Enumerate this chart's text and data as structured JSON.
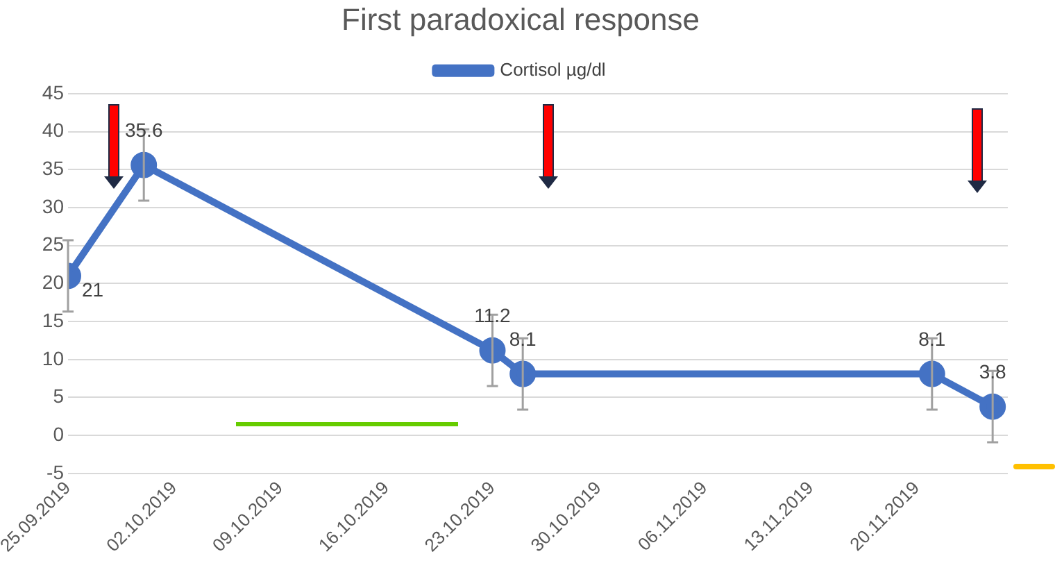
{
  "chart_data": {
    "type": "line",
    "title": "First paradoxical response",
    "x": [
      "2019-09-25",
      "2019-09-30",
      "2019-10-23",
      "2019-10-25",
      "2019-11-21",
      "2019-11-25"
    ],
    "series": [
      {
        "name": "Cortisol µg/dl",
        "color": "#4472c4",
        "values": [
          21,
          35.6,
          11.2,
          8.1,
          8.1,
          3.8
        ],
        "errors": [
          4.7,
          4.7,
          4.7,
          4.7,
          4.7,
          4.7
        ]
      }
    ],
    "xlim": [
      "2019-09-25",
      "2019-11-26"
    ],
    "xticks": [
      {
        "value": "2019-09-25",
        "label": "25.09.2019"
      },
      {
        "value": "2019-10-02",
        "label": "02.10.2019"
      },
      {
        "value": "2019-10-09",
        "label": "09.10.2019"
      },
      {
        "value": "2019-10-16",
        "label": "16.10.2019"
      },
      {
        "value": "2019-10-23",
        "label": "23.10.2019"
      },
      {
        "value": "2019-10-30",
        "label": "30.10.2019"
      },
      {
        "value": "2019-11-06",
        "label": "06.11.2019"
      },
      {
        "value": "2019-11-13",
        "label": "13.11.2019"
      },
      {
        "value": "2019-11-20",
        "label": "20.11.2019"
      }
    ],
    "ylim": [
      -5,
      45
    ],
    "yticks": [
      -5,
      0,
      5,
      10,
      15,
      20,
      25,
      30,
      35,
      40,
      45
    ],
    "grid": "y",
    "legend": "top",
    "marker": "circle",
    "line_style": "solid",
    "data_labels": true
  }
}
